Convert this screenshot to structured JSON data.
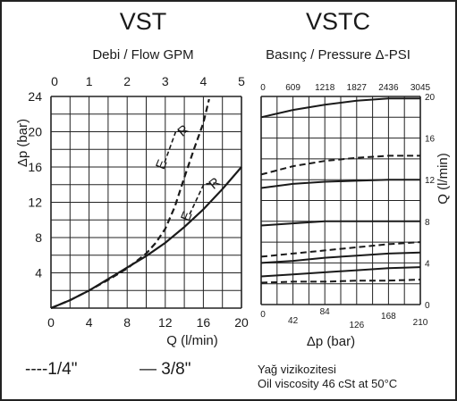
{
  "chart_data": [
    {
      "type": "line",
      "title": "VST",
      "subtitle": "Debi / Flow GPM",
      "xlabel": "Q (l/min)",
      "ylabel": "Δp (bar)",
      "xlim": [
        0,
        20
      ],
      "ylim": [
        0,
        24
      ],
      "x_ticks": [
        "0",
        "4",
        "8",
        "12",
        "16",
        "20"
      ],
      "y_ticks": [
        "4",
        "8",
        "12",
        "16",
        "20",
        "24"
      ],
      "top_xlim": [
        0,
        5
      ],
      "top_ticks": [
        "0",
        "1",
        "2",
        "3",
        "4",
        "5"
      ],
      "grid": true,
      "series": [
        {
          "name": "1/4\"",
          "style": "dashed",
          "points": [
            [
              0,
              0
            ],
            [
              2,
              0.9
            ],
            [
              4,
              2
            ],
            [
              6,
              3.2
            ],
            [
              8,
              4.5
            ],
            [
              10,
              6.2
            ],
            [
              11,
              7.4
            ],
            [
              12,
              9
            ],
            [
              13,
              11.5
            ],
            [
              14,
              14.8
            ],
            [
              15,
              18
            ],
            [
              16,
              21
            ],
            [
              16.6,
              23.7
            ]
          ],
          "label": "E-R"
        },
        {
          "name": "3/8\"",
          "style": "solid",
          "points": [
            [
              0,
              0
            ],
            [
              2,
              0.9
            ],
            [
              4,
              2
            ],
            [
              6,
              3.3
            ],
            [
              8,
              4.6
            ],
            [
              10,
              5.9
            ],
            [
              12,
              7.4
            ],
            [
              14,
              9.2
            ],
            [
              16,
              11.2
            ],
            [
              18,
              13.5
            ],
            [
              20,
              16
            ]
          ],
          "label": "E-R"
        }
      ]
    },
    {
      "type": "line",
      "title": "VSTC",
      "subtitle": "Basınç / Pressure Δ-PSI",
      "xlabel": "Δp (bar)",
      "ylabel": "Q (l/min)",
      "xlim": [
        0,
        210
      ],
      "ylim": [
        0,
        20
      ],
      "x_ticks": [
        "0",
        "42",
        "84",
        "126",
        "168",
        "210"
      ],
      "y_ticks": [
        "0",
        "4",
        "8",
        "12",
        "16",
        "20"
      ],
      "top_ticks": [
        "0",
        "609",
        "1218",
        "1827",
        "2436",
        "3045"
      ],
      "grid": true,
      "series": [
        {
          "style": "solid",
          "points": [
            [
              0,
              18.0
            ],
            [
              42,
              18.7
            ],
            [
              84,
              19.2
            ],
            [
              126,
              19.6
            ],
            [
              168,
              19.8
            ],
            [
              210,
              19.8
            ]
          ]
        },
        {
          "style": "dashed",
          "points": [
            [
              0,
              12.5
            ],
            [
              42,
              13.3
            ],
            [
              84,
              13.8
            ],
            [
              126,
              14.1
            ],
            [
              168,
              14.3
            ],
            [
              210,
              14.3
            ]
          ]
        },
        {
          "style": "solid",
          "points": [
            [
              0,
              11.2
            ],
            [
              42,
              11.6
            ],
            [
              84,
              11.8
            ],
            [
              126,
              11.9
            ],
            [
              168,
              12.0
            ],
            [
              210,
              12.0
            ]
          ]
        },
        {
          "style": "solid",
          "points": [
            [
              0,
              7.6
            ],
            [
              42,
              7.8
            ],
            [
              84,
              8.0
            ],
            [
              126,
              8.0
            ],
            [
              168,
              8.0
            ],
            [
              210,
              8.0
            ]
          ]
        },
        {
          "style": "dashed",
          "points": [
            [
              0,
              4.6
            ],
            [
              42,
              4.9
            ],
            [
              84,
              5.2
            ],
            [
              126,
              5.5
            ],
            [
              168,
              5.8
            ],
            [
              210,
              6.0
            ]
          ]
        },
        {
          "style": "solid",
          "points": [
            [
              0,
              4.0
            ],
            [
              42,
              4.2
            ],
            [
              84,
              4.5
            ],
            [
              126,
              4.7
            ],
            [
              168,
              4.9
            ],
            [
              210,
              5.0
            ]
          ]
        },
        {
          "style": "solid",
          "points": [
            [
              0,
              2.7
            ],
            [
              42,
              2.9
            ],
            [
              84,
              3.1
            ],
            [
              126,
              3.3
            ],
            [
              168,
              3.5
            ],
            [
              210,
              3.6
            ]
          ]
        },
        {
          "style": "dashed",
          "points": [
            [
              0,
              2.1
            ],
            [
              42,
              2.2
            ],
            [
              84,
              2.2
            ],
            [
              126,
              2.3
            ],
            [
              168,
              2.3
            ],
            [
              210,
              2.4
            ]
          ]
        }
      ]
    }
  ],
  "legend": {
    "dashed_label": "----1/4\"",
    "solid_label": "— 3/8\""
  },
  "note": {
    "line1": "Yağ vizikozitesi",
    "line2": "Oil viscosity 46 cSt at 50°C"
  }
}
